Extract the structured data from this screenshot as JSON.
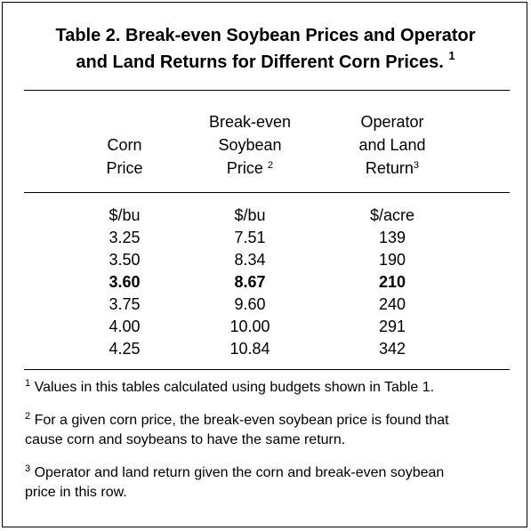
{
  "title": {
    "line1": "Table 2.  Break-even Soybean Prices and Operator",
    "line2": "and Land Returns for Different Corn Prices.",
    "note_mark": "1"
  },
  "headers": {
    "corn": [
      "Corn",
      "Price"
    ],
    "soybean": [
      "Break-even",
      "Soybean",
      "Price"
    ],
    "soybean_note": "2",
    "return": [
      "Operator",
      "and Land",
      "Return"
    ],
    "return_note": "3"
  },
  "units": {
    "corn": "$/bu",
    "soybean": "$/bu",
    "return": "$/acre"
  },
  "rows": [
    {
      "corn": "3.25",
      "soybean": "7.51",
      "return": "139",
      "bold": false
    },
    {
      "corn": "3.50",
      "soybean": "8.34",
      "return": "190",
      "bold": false
    },
    {
      "corn": "3.60",
      "soybean": "8.67",
      "return": "210",
      "bold": true
    },
    {
      "corn": "3.75",
      "soybean": "9.60",
      "return": "240",
      "bold": false
    },
    {
      "corn": "4.00",
      "soybean": "10.00",
      "return": "291",
      "bold": false
    },
    {
      "corn": "4.25",
      "soybean": "10.84",
      "return": "342",
      "bold": false
    }
  ],
  "footnotes": [
    {
      "mark": "1",
      "lines": [
        "Values in this tables calculated using budgets shown in Table 1."
      ]
    },
    {
      "mark": "2",
      "lines": [
        "For a given corn price, the break-even soybean price is found that",
        "cause corn and soybeans to have the same return."
      ]
    },
    {
      "mark": "3",
      "lines": [
        "Operator and land return given the corn and break-even soybean",
        "price in this row."
      ]
    }
  ]
}
